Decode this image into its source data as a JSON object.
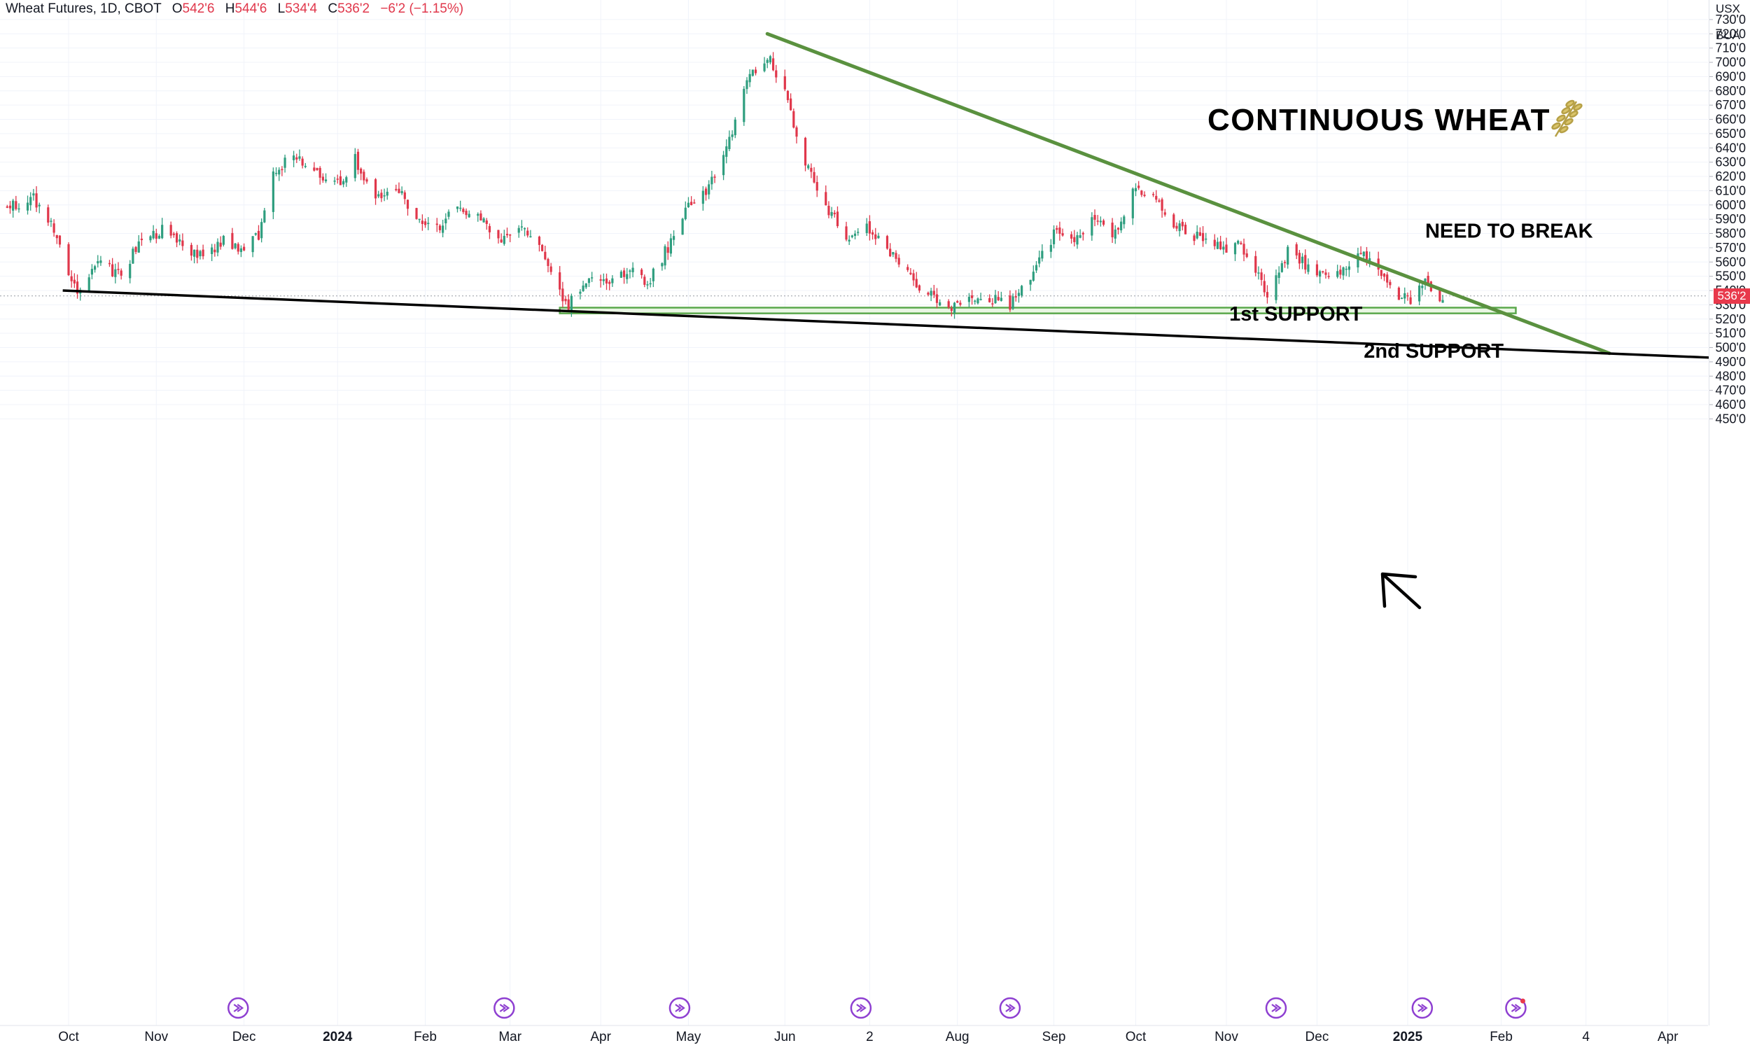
{
  "header": {
    "symbol": "Wheat Futures, 1D, CBOT",
    "o_label": "O",
    "o_value": "542'6",
    "h_label": "H",
    "h_value": "544'6",
    "l_label": "L",
    "l_value": "534'4",
    "c_label": "C",
    "c_value": "536'2",
    "change": "−6'2 (−1.15%)"
  },
  "units": {
    "currency": "USX",
    "measure": "BUA"
  },
  "last_price_label": "536'2",
  "colors": {
    "up": "#2f9e7f",
    "down": "#e0374b",
    "trend": "#5a913f",
    "support_line": "#000000",
    "zone_fill": "#e9f6e4",
    "zone_border": "#5aa84c",
    "grid": "#f0f3fa"
  },
  "chart_data": {
    "type": "candlestick",
    "title": "CONTINUOUS WHEAT",
    "title_icon": "wheat-icon",
    "ylim": [
      445,
      735
    ],
    "y_ticks": [
      "450'0",
      "460'0",
      "470'0",
      "480'0",
      "490'0",
      "500'0",
      "510'0",
      "520'0",
      "530'0",
      "540'0",
      "550'0",
      "560'0",
      "570'0",
      "580'0",
      "590'0",
      "600'0",
      "610'0",
      "620'0",
      "630'0",
      "640'0",
      "650'0",
      "660'0",
      "670'0",
      "680'0",
      "690'0",
      "700'0",
      "710'0",
      "720'0",
      "730'0"
    ],
    "x_ticks": [
      {
        "label": "Oct",
        "date": "2023-10-02",
        "bold": false
      },
      {
        "label": "Nov",
        "date": "2023-11-01",
        "bold": false
      },
      {
        "label": "Dec",
        "date": "2023-12-01",
        "bold": false
      },
      {
        "label": "2024",
        "date": "2024-01-02",
        "bold": true
      },
      {
        "label": "Feb",
        "date": "2024-02-01",
        "bold": false
      },
      {
        "label": "Mar",
        "date": "2024-03-01",
        "bold": false
      },
      {
        "label": "Apr",
        "date": "2024-04-01",
        "bold": false
      },
      {
        "label": "May",
        "date": "2024-05-01",
        "bold": false
      },
      {
        "label": "Jun",
        "date": "2024-06-03",
        "bold": false
      },
      {
        "label": "2",
        "date": "2024-07-02",
        "bold": false
      },
      {
        "label": "Aug",
        "date": "2024-08-01",
        "bold": false
      },
      {
        "label": "Sep",
        "date": "2024-09-03",
        "bold": false
      },
      {
        "label": "Oct",
        "date": "2024-10-01",
        "bold": false
      },
      {
        "label": "Nov",
        "date": "2024-11-01",
        "bold": false
      },
      {
        "label": "Dec",
        "date": "2024-12-02",
        "bold": false
      },
      {
        "label": "2025",
        "date": "2025-01-02",
        "bold": true
      },
      {
        "label": "Feb",
        "date": "2025-02-03",
        "bold": false
      },
      {
        "label": "4",
        "date": "2025-03-04",
        "bold": false
      },
      {
        "label": "Apr",
        "date": "2025-04-01",
        "bold": false
      }
    ],
    "price_path": [
      [
        "2023-09-11",
        598
      ],
      [
        "2023-09-20",
        604
      ],
      [
        "2023-09-28",
        580
      ],
      [
        "2023-10-03",
        548
      ],
      [
        "2023-10-05",
        542
      ],
      [
        "2023-10-12",
        558
      ],
      [
        "2023-10-20",
        552
      ],
      [
        "2023-10-27",
        575
      ],
      [
        "2023-11-03",
        582
      ],
      [
        "2023-11-10",
        572
      ],
      [
        "2023-11-17",
        562
      ],
      [
        "2023-11-24",
        575
      ],
      [
        "2023-12-01",
        568
      ],
      [
        "2023-12-06",
        580
      ],
      [
        "2023-12-11",
        622
      ],
      [
        "2023-12-18",
        636
      ],
      [
        "2023-12-25",
        625
      ],
      [
        "2024-01-03",
        615
      ],
      [
        "2024-01-08",
        632
      ],
      [
        "2024-01-15",
        603
      ],
      [
        "2024-01-22",
        612
      ],
      [
        "2024-01-30",
        588
      ],
      [
        "2024-02-06",
        585
      ],
      [
        "2024-02-12",
        600
      ],
      [
        "2024-02-20",
        592
      ],
      [
        "2024-02-27",
        575
      ],
      [
        "2024-03-05",
        588
      ],
      [
        "2024-03-12",
        565
      ],
      [
        "2024-03-18",
        540
      ],
      [
        "2024-03-21",
        530
      ],
      [
        "2024-03-27",
        548
      ],
      [
        "2024-04-03",
        544
      ],
      [
        "2024-04-10",
        555
      ],
      [
        "2024-04-17",
        546
      ],
      [
        "2024-04-24",
        570
      ],
      [
        "2024-05-01",
        598
      ],
      [
        "2024-05-08",
        612
      ],
      [
        "2024-05-14",
        638
      ],
      [
        "2024-05-20",
        682
      ],
      [
        "2024-05-28",
        705
      ],
      [
        "2024-06-03",
        678
      ],
      [
        "2024-06-10",
        630
      ],
      [
        "2024-06-17",
        600
      ],
      [
        "2024-06-24",
        578
      ],
      [
        "2024-07-01",
        585
      ],
      [
        "2024-07-08",
        570
      ],
      [
        "2024-07-15",
        550
      ],
      [
        "2024-07-22",
        538
      ],
      [
        "2024-07-29",
        528
      ],
      [
        "2024-08-05",
        538
      ],
      [
        "2024-08-12",
        534
      ],
      [
        "2024-08-19",
        530
      ],
      [
        "2024-08-26",
        550
      ],
      [
        "2024-09-03",
        580
      ],
      [
        "2024-09-10",
        575
      ],
      [
        "2024-09-17",
        590
      ],
      [
        "2024-09-24",
        580
      ],
      [
        "2024-10-01",
        614
      ],
      [
        "2024-10-08",
        602
      ],
      [
        "2024-10-15",
        585
      ],
      [
        "2024-10-22",
        578
      ],
      [
        "2024-10-29",
        570
      ],
      [
        "2024-11-05",
        572
      ],
      [
        "2024-11-12",
        552
      ],
      [
        "2024-11-15",
        532
      ],
      [
        "2024-11-22",
        568
      ],
      [
        "2024-11-29",
        556
      ],
      [
        "2024-12-06",
        546
      ],
      [
        "2024-12-13",
        560
      ],
      [
        "2024-12-20",
        565
      ],
      [
        "2024-12-27",
        542
      ],
      [
        "2025-01-03",
        532
      ],
      [
        "2025-01-08",
        550
      ],
      [
        "2025-01-10",
        540
      ],
      [
        "2025-01-14",
        536
      ]
    ],
    "drawings": {
      "downtrend_line": {
        "from": [
          "2024-05-28",
          720
        ],
        "to": [
          "2025-03-12",
          496
        ]
      },
      "support_line": {
        "from": [
          "2023-09-30",
          540
        ],
        "to": [
          "2025-04-15",
          493
        ]
      },
      "support_zone": {
        "from_date": "2024-03-18",
        "to_date": "2025-02-08",
        "low": 524,
        "high": 528
      }
    },
    "annotations": [
      {
        "text": "NEED TO BREAK",
        "date": "2025-01-08",
        "price": 577
      },
      {
        "text": "1st SUPPORT",
        "date": "2024-11-02",
        "price": 519
      },
      {
        "text": "2nd SUPPORT",
        "date": "2024-12-18",
        "price": 493
      }
    ],
    "event_markers": [
      "2023-11-29",
      "2024-02-28",
      "2024-04-28",
      "2024-06-29",
      "2024-08-19",
      "2024-11-18",
      "2025-01-07",
      "2025-02-08"
    ],
    "last_price": 536.25
  }
}
